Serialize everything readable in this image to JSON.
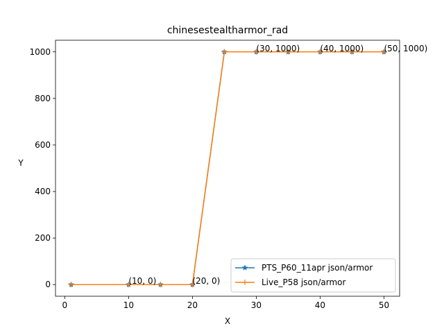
{
  "chart_data": {
    "type": "line",
    "title": "chinesestealtharmor_rad",
    "xlabel": "X",
    "ylabel": "Y",
    "xlim": [
      -1.45,
      52.45
    ],
    "ylim": [
      -50,
      1050
    ],
    "x_ticks": [
      0,
      10,
      20,
      30,
      40,
      50
    ],
    "y_ticks": [
      0,
      200,
      400,
      600,
      800,
      1000
    ],
    "x": [
      1,
      10,
      15,
      20,
      25,
      30,
      35,
      40,
      45,
      50
    ],
    "series": [
      {
        "name": "PTS_P60_11apr json/armor",
        "color": "#1f77b4",
        "marker": "star",
        "values": [
          0,
          0,
          0,
          0,
          1000,
          1000,
          1000,
          1000,
          1000,
          1000
        ]
      },
      {
        "name": "Live_P58 json/armor",
        "color": "#ff7f0e",
        "marker": "plus",
        "values": [
          0,
          0,
          0,
          0,
          1000,
          1000,
          1000,
          1000,
          1000,
          1000
        ]
      }
    ],
    "annotations": [
      {
        "x": 10,
        "y": 0,
        "text": "(10, 0)"
      },
      {
        "x": 20,
        "y": 0,
        "text": "(20, 0)"
      },
      {
        "x": 30,
        "y": 1000,
        "text": "(30, 1000)"
      },
      {
        "x": 40,
        "y": 1000,
        "text": "(40, 1000)"
      },
      {
        "x": 50,
        "y": 1000,
        "text": "(50, 1000)"
      }
    ],
    "legend": "lower-right",
    "grid": false
  }
}
